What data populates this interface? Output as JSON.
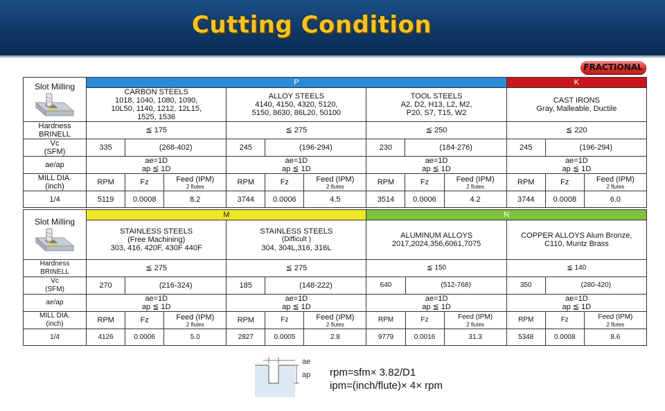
{
  "page_title": "Cutting Condition",
  "badge": "FRACTIONAL",
  "table1": {
    "slot_label": "Slot Milling",
    "group_p": "P",
    "group_k": "K",
    "materials": [
      {
        "name": "CARBON STEELS",
        "detail": "1018, 1040, 1080, 1090,\n10L50, 1140, 1212, 12L15,\n1525, 1536"
      },
      {
        "name": "ALLOY STEELS",
        "detail": "4140, 4150, 4320, 5120,\n5150, 8630, 86L20, 50100"
      },
      {
        "name": "TOOL STEELS",
        "detail": "A2, D2, H13, L2, M2,\nP20, S7, T15, W2"
      },
      {
        "name": "CAST IRONS",
        "detail": "Gray, Malleable, Ductile"
      }
    ],
    "hardness_label": "Hardness\nBRINELL",
    "hardness": [
      "≦ 175",
      "≦ 275",
      "≦ 250",
      "≦ 220"
    ],
    "vc_label": "Vc\n(SFM)",
    "vc": [
      {
        "value": "335",
        "range": "(268-402)"
      },
      {
        "value": "245",
        "range": "(196-294)"
      },
      {
        "value": "230",
        "range": "(184-276)"
      },
      {
        "value": "245",
        "range": "(196-294)"
      }
    ],
    "aeap_label": "ae/ap",
    "aeap_ae": "ae=1D",
    "aeap_ap": "ap ≦ 1D",
    "mill_label": "MILL DIA.\n(inch)",
    "col_rpm": "RPM",
    "col_fz": "Fz",
    "col_feed": "Feed (IPM)",
    "col_flutes": "2 flutes",
    "row_dia": "1/4",
    "row": [
      {
        "rpm": "5119",
        "fz": "0.0008",
        "feed": "8.2"
      },
      {
        "rpm": "3744",
        "fz": "0.0006",
        "feed": "4.5"
      },
      {
        "rpm": "3514",
        "fz": "0.0006",
        "feed": "4.2"
      },
      {
        "rpm": "3744",
        "fz": "0.0008",
        "feed": "6.0"
      }
    ]
  },
  "table2": {
    "slot_label": "Slot Milling",
    "group_m": "M",
    "group_n": "N",
    "materials": [
      {
        "name": "STAINLESS STEELS",
        "sub": "(Free Machining)",
        "detail": "303, 416, 420F, 430F 440F"
      },
      {
        "name": "STAINLESS STEELS",
        "sub": "(Difficult )",
        "detail": "304, 304L,316, 316L"
      },
      {
        "name": "ALUMINUM ALLOYS",
        "sub": "",
        "detail": "2017,2024,356,6061,7075"
      },
      {
        "name": "COPPER ALLOYS Alum Bronze,",
        "sub": "",
        "detail": "C110, Muntz Brass"
      }
    ],
    "hardness_label": "Hardness\nBRINELL",
    "hardness": [
      "≦ 275",
      "≦ 275",
      "≦ 150",
      "≦ 140"
    ],
    "vc_label": "Vc\n(SFM)",
    "vc": [
      {
        "value": "270",
        "range": "(216-324)"
      },
      {
        "value": "185",
        "range": "(148-222)"
      },
      {
        "value": "640",
        "range": "(512-768)"
      },
      {
        "value": "350",
        "range": "(280-420)"
      }
    ],
    "aeap_label": "ae/ap",
    "aeap_ae": "ae=1D",
    "aeap_ap": "ap ≦ 1D",
    "mill_label": "MILL DIA.\n(inch)",
    "col_rpm": "RPM",
    "col_fz": "Fz",
    "col_feed": "Feed (IPM)",
    "col_flutes": "2 flutes",
    "row_dia": "1/4",
    "row": [
      {
        "rpm": "4126",
        "fz": "0.0006",
        "feed": "5.0"
      },
      {
        "rpm": "2827",
        "fz": "0.0005",
        "feed": "2.8"
      },
      {
        "rpm": "9779",
        "fz": "0.0016",
        "feed": "31.3"
      },
      {
        "rpm": "5348",
        "fz": "0.0008",
        "feed": "8.6"
      }
    ]
  },
  "diagram": {
    "ae_label": "ae",
    "ap_label": "ap"
  },
  "formulas": {
    "rpm": "rpm=sfm× 3.82/D1",
    "ipm": "ipm=(inch/flute)× 4× rpm"
  },
  "colors": {
    "p": "#2a8ad8",
    "k": "#c8161c",
    "m": "#f0e628",
    "n": "#7dc23a",
    "title": "#f2c324",
    "header_bg": "#0f3867"
  }
}
